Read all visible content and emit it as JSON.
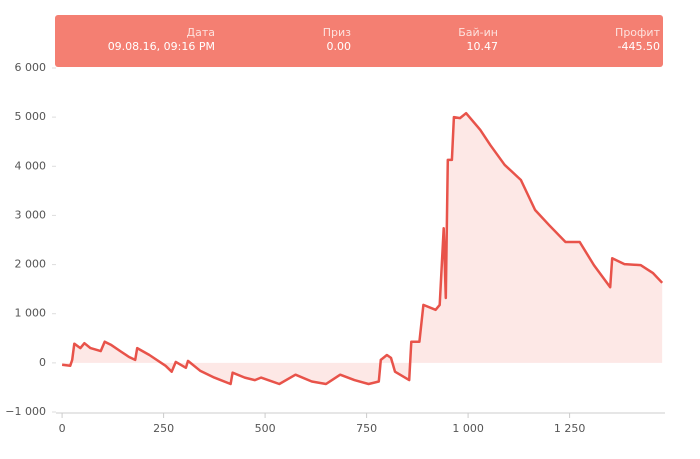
{
  "chart_data": {
    "type": "line",
    "tooltip": {
      "labels": [
        "Дата",
        "Приз",
        "Бай-ин",
        "Профит"
      ],
      "values": [
        "09.08.16, 09:16 PM",
        "0.00",
        "10.47",
        "-445.50"
      ]
    },
    "x": [
      0,
      20,
      25,
      30,
      45,
      55,
      70,
      95,
      105,
      120,
      145,
      165,
      180,
      185,
      215,
      255,
      270,
      280,
      305,
      310,
      340,
      375,
      415,
      420,
      450,
      475,
      490,
      535,
      575,
      615,
      650,
      685,
      720,
      755,
      780,
      785,
      800,
      810,
      820,
      855,
      860,
      880,
      890,
      920,
      930,
      940,
      945,
      950,
      960,
      965,
      980,
      995,
      1030,
      1055,
      1090,
      1130,
      1165,
      1200,
      1240,
      1275,
      1310,
      1350,
      1355,
      1385,
      1425,
      1455,
      1478
    ],
    "series": [
      {
        "color": "#e8534a",
        "fill": "#fde8e6",
        "values": [
          -40,
          -60,
          60,
          390,
          300,
          400,
          300,
          240,
          430,
          370,
          230,
          120,
          60,
          300,
          160,
          -60,
          -180,
          20,
          -100,
          40,
          -160,
          -300,
          -430,
          -200,
          -300,
          -350,
          -300,
          -430,
          -240,
          -380,
          -430,
          -240,
          -350,
          -430,
          -380,
          60,
          160,
          100,
          -180,
          -350,
          430,
          430,
          1180,
          1080,
          1180,
          2740,
          1320,
          4130,
          4130,
          5000,
          4980,
          5080,
          4740,
          4430,
          4030,
          3720,
          3110,
          2800,
          2460,
          2460,
          1990,
          1540,
          2130,
          2010,
          1990,
          1830,
          1630
        ]
      }
    ],
    "xlim": [
      -15,
      1485
    ],
    "xticks": [
      0,
      250,
      500,
      750,
      {
        "value": 1000,
        "label": "1 000"
      },
      {
        "value": 1250,
        "label": "1 250"
      }
    ],
    "ylim": [
      -1000,
      6000
    ],
    "yticks": [
      {
        "value": -1000,
        "label": "−1 000"
      },
      0,
      {
        "value": 1000,
        "label": "1 000"
      },
      {
        "value": 2000,
        "label": "2 000"
      },
      {
        "value": 3000,
        "label": "3 000"
      },
      {
        "value": 4000,
        "label": "4 000"
      },
      {
        "value": 5000,
        "label": "5 000"
      },
      {
        "value": 6000,
        "label": "6 000"
      }
    ]
  }
}
